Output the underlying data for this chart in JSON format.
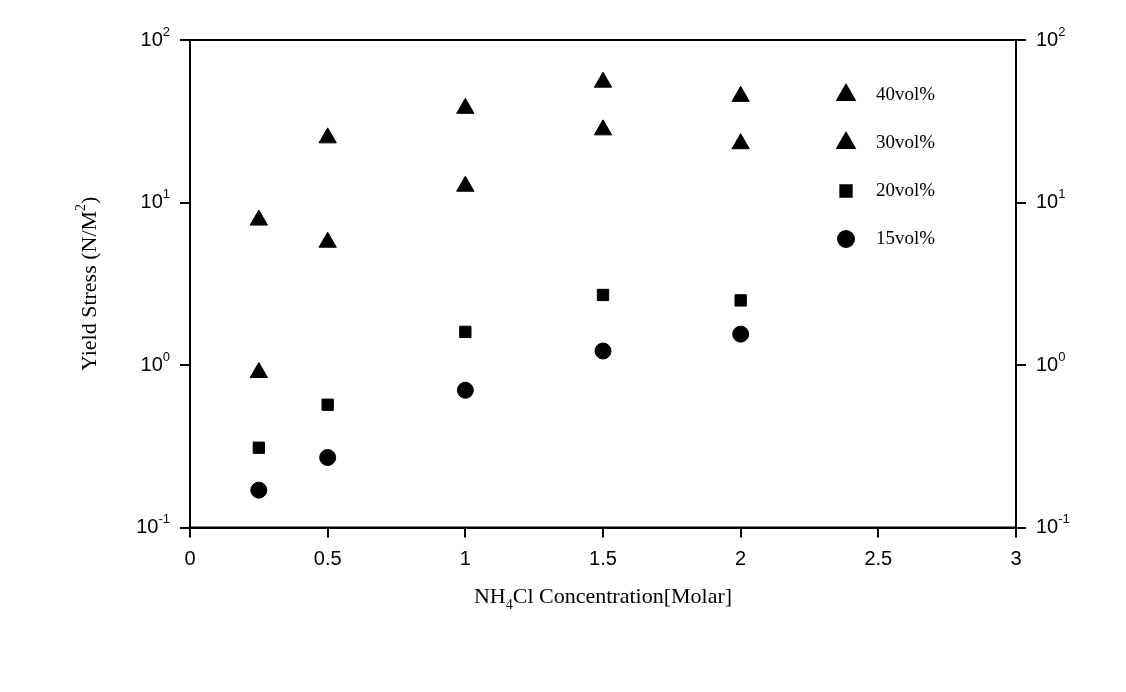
{
  "chart_data": {
    "type": "scatter",
    "xlabel": "NH$_{4}$Cl Concentration[Molar]",
    "ylabel": "Yield Stress (N/M$^{2}$)",
    "x": [
      0.25,
      0.5,
      1,
      1.5,
      2
    ],
    "series": [
      {
        "name": "40vol%",
        "color": "#000000",
        "marker": "triangle",
        "values": [
          7.8,
          25,
          38,
          55,
          45
        ]
      },
      {
        "name": "30vol%",
        "color": "#000000",
        "marker": "triangle",
        "values": [
          0.9,
          5.7,
          12.6,
          28,
          23
        ]
      },
      {
        "name": "20vol%",
        "color": "#000000",
        "marker": "square",
        "values": [
          0.31,
          0.57,
          1.6,
          2.7,
          2.5
        ]
      },
      {
        "name": "15vol%",
        "color": "#000000",
        "marker": "circle",
        "values": [
          0.17,
          0.27,
          0.7,
          1.22,
          1.55
        ]
      }
    ],
    "xlim": [
      0,
      3
    ],
    "xticks": [
      0,
      0.5,
      1,
      1.5,
      2,
      2.5,
      3
    ],
    "log": "y",
    "ylim": [
      0.1,
      100
    ],
    "yticks": [
      {
        "value": 0.1,
        "label": "10$^{-1}$"
      },
      {
        "value": 1,
        "label": "10$^{0}$"
      },
      {
        "value": 10,
        "label": "10$^{1}$"
      },
      {
        "value": 100,
        "label": "10$^{2}$"
      }
    ],
    "grid": false,
    "legend": "top right"
  }
}
